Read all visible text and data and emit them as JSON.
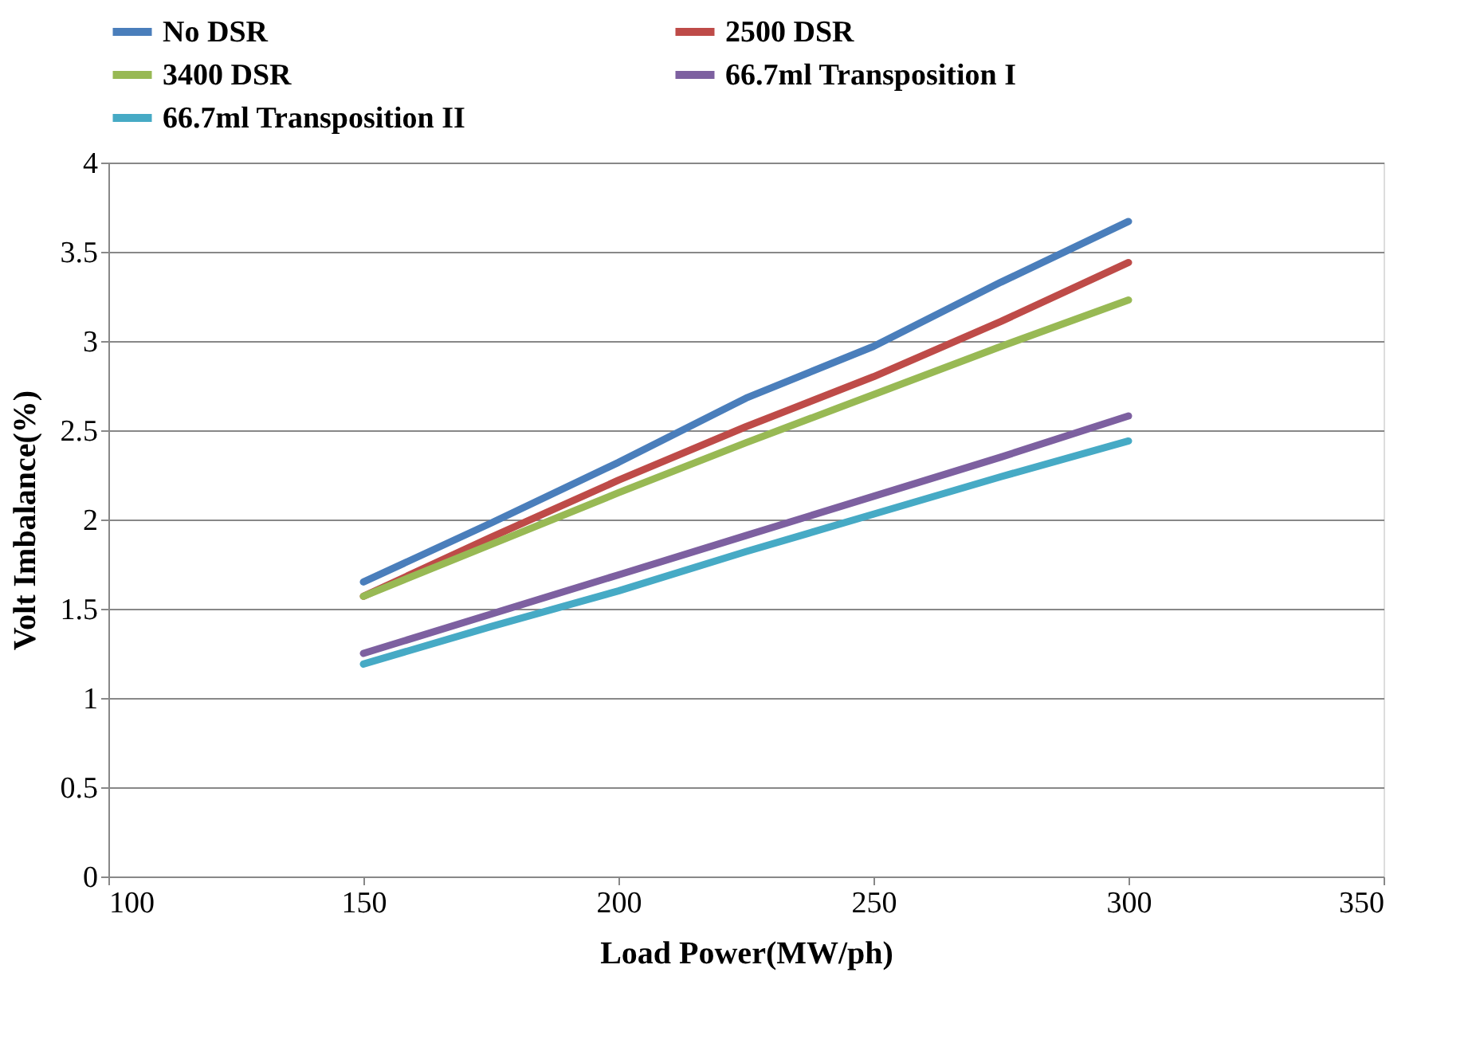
{
  "chart_data": {
    "type": "line",
    "xlabel": "Load Power(MW/ph)",
    "ylabel": "Volt Imbalance(%)",
    "x": [
      150,
      175,
      200,
      225,
      250,
      275,
      300
    ],
    "series": [
      {
        "name": "No DSR",
        "color": "#4a7ebb",
        "values": [
          1.65,
          1.98,
          2.32,
          2.68,
          2.97,
          3.33,
          3.67
        ]
      },
      {
        "name": "2500 DSR",
        "color": "#be4b48",
        "values": [
          1.57,
          1.9,
          2.22,
          2.52,
          2.8,
          3.11,
          3.44
        ]
      },
      {
        "name": "3400 DSR",
        "color": "#98b954",
        "values": [
          1.57,
          1.86,
          2.15,
          2.43,
          2.7,
          2.97,
          3.23
        ]
      },
      {
        "name": "66.7ml Transposition I",
        "color": "#7d60a0",
        "values": [
          1.25,
          1.47,
          1.69,
          1.91,
          2.13,
          2.35,
          2.58
        ]
      },
      {
        "name": "66.7ml Transposition II",
        "color": "#46aac5",
        "values": [
          1.19,
          1.4,
          1.6,
          1.82,
          2.03,
          2.24,
          2.44
        ]
      }
    ],
    "xlim": [
      100,
      350
    ],
    "xticks": [
      100,
      150,
      200,
      250,
      300,
      350
    ],
    "ylim": [
      0,
      4
    ],
    "yticks": [
      0,
      0.5,
      1,
      1.5,
      2,
      2.5,
      3,
      3.5,
      4
    ],
    "grid": "y",
    "legend": "top",
    "marker": "none",
    "line_style": "solid"
  }
}
